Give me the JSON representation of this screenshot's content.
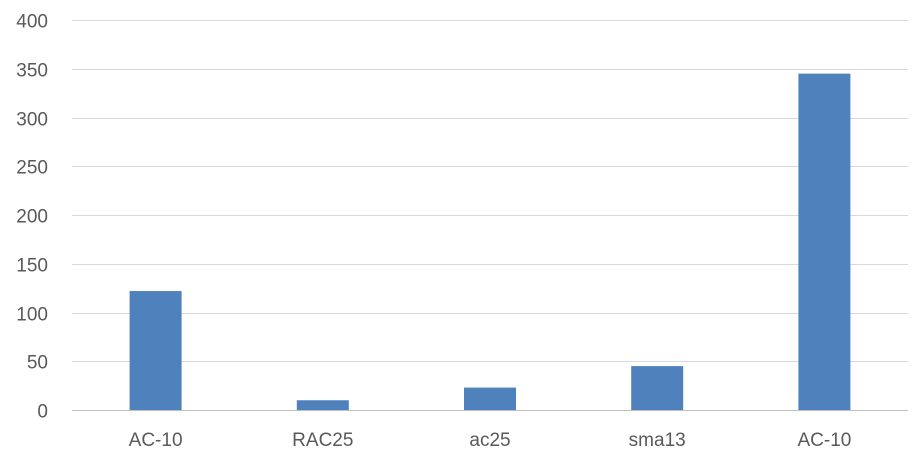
{
  "chart_data": {
    "type": "bar",
    "categories": [
      "AC-10",
      "RAC25",
      "ac25",
      "sma13",
      "AC-10"
    ],
    "series": [
      {
        "values": [
          122,
          10,
          23,
          45,
          345
        ]
      }
    ],
    "ylim": [
      0,
      400
    ],
    "yticks": [
      0,
      50,
      100,
      150,
      200,
      250,
      300,
      350,
      400
    ],
    "grid": true,
    "legend": "none",
    "colors": {
      "bar": "#4f81bd",
      "grid": "#d9d9d9",
      "axis": "#bfbfbf",
      "text": "#595959"
    }
  }
}
